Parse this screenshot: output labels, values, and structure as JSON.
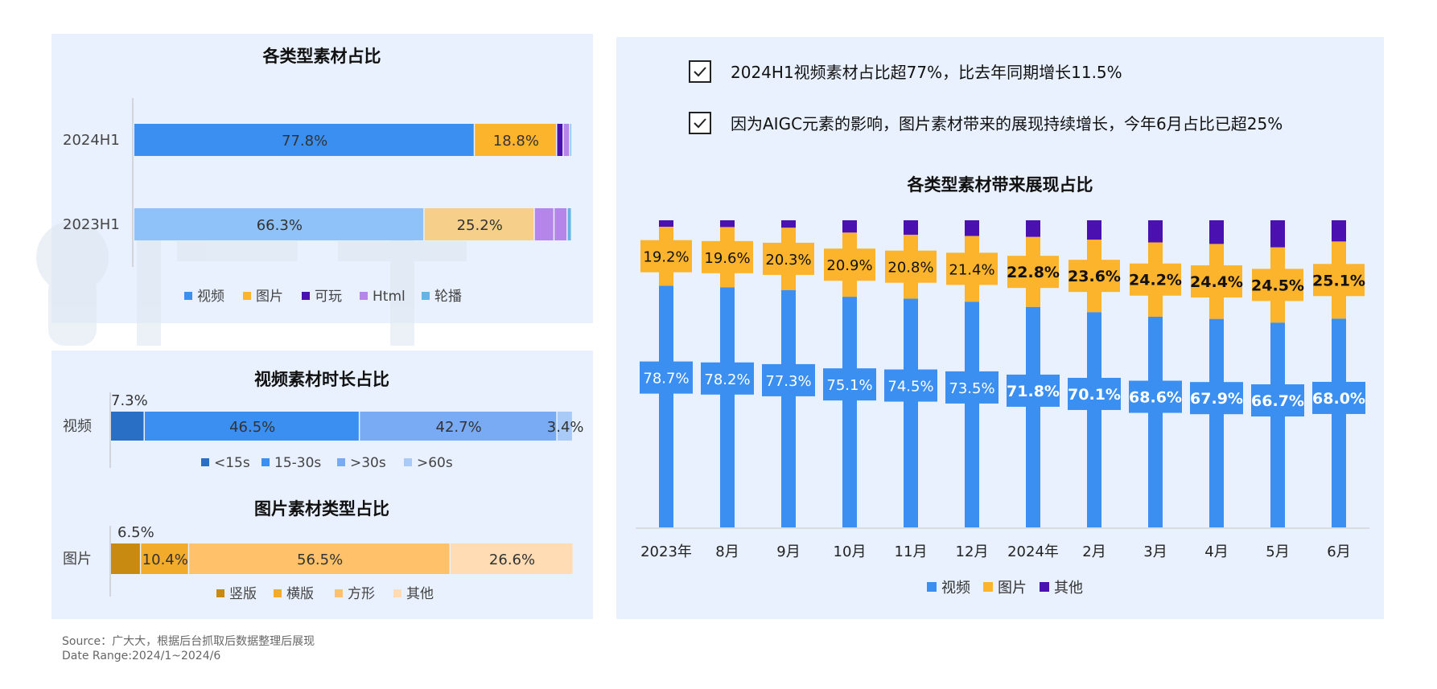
{
  "source": "Source：广大大，根据后台抓取后数据整理后展现",
  "date_range": "Date Range:2024/1~2024/6",
  "bullets": [
    "2024H1视频素材占比超77%，比去年同期增长11.5%",
    "因为AIGC元素的影响，图片素材带来的展现持续增长，今年6月占比已超25%"
  ],
  "colors": {
    "video": "#3b8ff0",
    "image": "#fbb42c",
    "playable": "#4a10b0",
    "html": "#b585ea",
    "carousel": "#64b4e8",
    "video_2023": "#8fc2f8",
    "image_2023": "#f6d08a",
    "dur_lt15": "#2a6fc6",
    "dur_15_30": "#3b8ff0",
    "dur_gt30": "#78abf3",
    "dur_gt60": "#a9c9f6",
    "img_vertical": "#c98a12",
    "img_horizontal": "#f2ab2a",
    "img_square": "#ffc26a",
    "img_other": "#ffdcb3",
    "other": "#4a10b0",
    "panel": "#e8f1fd"
  },
  "chart_data": [
    {
      "id": "material-type",
      "type": "bar",
      "orientation": "horizontal-stacked",
      "title": "各类型素材占比",
      "categories": [
        "2024H1",
        "2023H1"
      ],
      "series": [
        {
          "name": "视频",
          "values": [
            77.8,
            66.3
          ]
        },
        {
          "name": "图片",
          "values": [
            18.8,
            25.2
          ]
        },
        {
          "name": "可玩",
          "values": [
            1.5,
            4.5
          ]
        },
        {
          "name": "Html",
          "values": [
            1.5,
            3.0
          ]
        },
        {
          "name": "轮播",
          "values": [
            0.4,
            1.0
          ]
        }
      ],
      "labels": [
        [
          "77.8%",
          "18.8%",
          "",
          "",
          ""
        ],
        [
          "66.3%",
          "25.2%",
          "",
          "",
          ""
        ]
      ],
      "legend": [
        "视频",
        "图片",
        "可玩",
        "Html",
        "轮播"
      ]
    },
    {
      "id": "video-duration",
      "type": "bar",
      "orientation": "horizontal-stacked",
      "title": "视频素材时长占比",
      "categories": [
        "视频"
      ],
      "series": [
        {
          "name": "<15s",
          "values": [
            7.3
          ]
        },
        {
          "name": "15-30s",
          "values": [
            46.5
          ]
        },
        {
          "name": ">30s",
          "values": [
            42.7
          ]
        },
        {
          "name": ">60s",
          "values": [
            3.4
          ]
        }
      ],
      "labels": [
        "7.3%",
        "46.5%",
        "42.7%",
        "3.4%"
      ],
      "legend": [
        "<15s",
        "15-30s",
        ">30s",
        ">60s"
      ]
    },
    {
      "id": "image-type",
      "type": "bar",
      "orientation": "horizontal-stacked",
      "title": "图片素材类型占比",
      "categories": [
        "图片"
      ],
      "series": [
        {
          "name": "竖版",
          "values": [
            6.5
          ]
        },
        {
          "name": "横版",
          "values": [
            10.4
          ]
        },
        {
          "name": "方形",
          "values": [
            56.5
          ]
        },
        {
          "name": "其他",
          "values": [
            26.6
          ]
        }
      ],
      "labels": [
        "6.5%",
        "10.4%",
        "56.5%",
        "26.6%"
      ],
      "legend": [
        "竖版",
        "横版",
        "方形",
        "其他"
      ]
    },
    {
      "id": "monthly-share",
      "type": "bar",
      "orientation": "vertical-stacked",
      "title": "各类型素材带来展现占比",
      "categories": [
        "2023年",
        "8月",
        "9月",
        "10月",
        "11月",
        "12月",
        "2024年",
        "2月",
        "3月",
        "4月",
        "5月",
        "6月"
      ],
      "series": [
        {
          "name": "视频",
          "values": [
            78.7,
            78.2,
            77.3,
            75.1,
            74.5,
            73.5,
            71.8,
            70.1,
            68.6,
            67.9,
            66.7,
            68.0
          ]
        },
        {
          "name": "图片",
          "values": [
            19.2,
            19.6,
            20.3,
            20.9,
            20.8,
            21.4,
            22.8,
            23.6,
            24.2,
            24.4,
            24.5,
            25.1
          ]
        },
        {
          "name": "其他",
          "values": [
            2.1,
            2.2,
            2.4,
            4.0,
            4.7,
            5.1,
            5.4,
            6.3,
            7.2,
            7.7,
            8.8,
            6.9
          ]
        }
      ],
      "video_labels": [
        "78.7%",
        "78.2%",
        "77.3%",
        "75.1%",
        "74.5%",
        "73.5%",
        "71.8%",
        "70.1%",
        "68.6%",
        "67.9%",
        "66.7%",
        "68.0%"
      ],
      "image_labels": [
        "19.2%",
        "19.6%",
        "20.3%",
        "20.9%",
        "20.8%",
        "21.4%",
        "22.8%",
        "23.6%",
        "24.2%",
        "24.4%",
        "24.5%",
        "25.1%"
      ],
      "legend": [
        "视频",
        "图片",
        "其他"
      ],
      "ylim": [
        0,
        100
      ]
    }
  ]
}
